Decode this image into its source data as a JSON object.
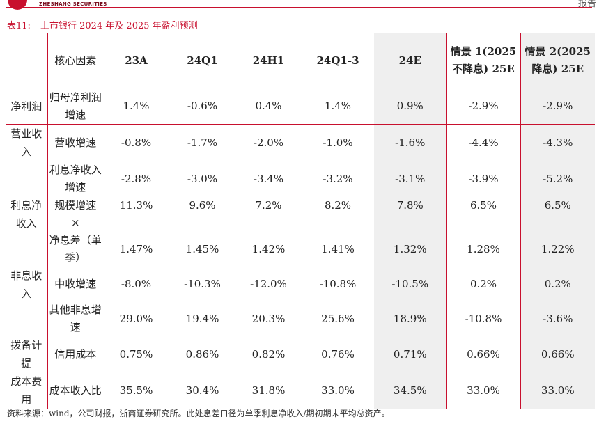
{
  "header": {
    "logo_text": "ZHESHANG SECURITIES",
    "top_right_text": "报告"
  },
  "caption": {
    "number": "表11:",
    "title": "上市银行 2024 年及 2025 年盈利预测"
  },
  "table": {
    "factor_header": "核心因素",
    "columns": [
      "23A",
      "24Q1",
      "24H1",
      "24Q1-3",
      "24E",
      "情景 1(2025 不降息) 25E",
      "情景 2(2025 降息) 25E"
    ],
    "rows": [
      {
        "category": "净利润",
        "factor": "归母净利润增速",
        "values": [
          "1.4%",
          "-0.6%",
          "0.4%",
          "1.4%",
          "0.9%",
          "-2.9%",
          "-2.9%"
        ]
      },
      {
        "category": "营业收入",
        "factor": "营收增速",
        "values": [
          "-0.8%",
          "-1.7%",
          "-2.0%",
          "-1.0%",
          "-1.6%",
          "-4.4%",
          "-4.3%"
        ]
      },
      {
        "category": "利息净收入",
        "factor": "利息净收入增速",
        "values": [
          "-2.8%",
          "-3.0%",
          "-3.4%",
          "-3.2%",
          "-3.1%",
          "-3.9%",
          "-5.2%"
        ]
      },
      {
        "category": "",
        "factor": "规模增速",
        "values": [
          "11.3%",
          "9.6%",
          "7.2%",
          "8.2%",
          "7.8%",
          "6.5%",
          "6.5%"
        ]
      },
      {
        "category": "",
        "factor": "×",
        "values": [
          "",
          "",
          "",
          "",
          "",
          "",
          ""
        ]
      },
      {
        "category": "",
        "factor": "净息差（单季）",
        "values": [
          "1.47%",
          "1.45%",
          "1.42%",
          "1.41%",
          "1.32%",
          "1.28%",
          "1.22%"
        ]
      },
      {
        "category": "非息收入",
        "factor": "中收增速",
        "values": [
          "-8.0%",
          "-10.3%",
          "-12.0%",
          "-10.8%",
          "-10.5%",
          "0.2%",
          "0.2%"
        ]
      },
      {
        "category": "",
        "factor": "其他非息增速",
        "values": [
          "29.0%",
          "19.4%",
          "20.3%",
          "25.6%",
          "18.9%",
          "-10.8%",
          "-3.6%"
        ]
      },
      {
        "category": "拨备计提",
        "factor": "信用成本",
        "values": [
          "0.75%",
          "0.86%",
          "0.82%",
          "0.76%",
          "0.71%",
          "0.66%",
          "0.66%"
        ]
      },
      {
        "category": "成本费用",
        "factor": "成本收入比",
        "values": [
          "35.5%",
          "30.4%",
          "31.8%",
          "33.0%",
          "34.5%",
          "33.0%",
          "33.0%"
        ]
      }
    ]
  },
  "source": "资料来源：wind，公司财报，浙商证券研究所。此处息差口径为单季利息净收入/期初期末平均总资产。",
  "colors": {
    "accent": "#c8102e",
    "shade": "#efefef"
  }
}
